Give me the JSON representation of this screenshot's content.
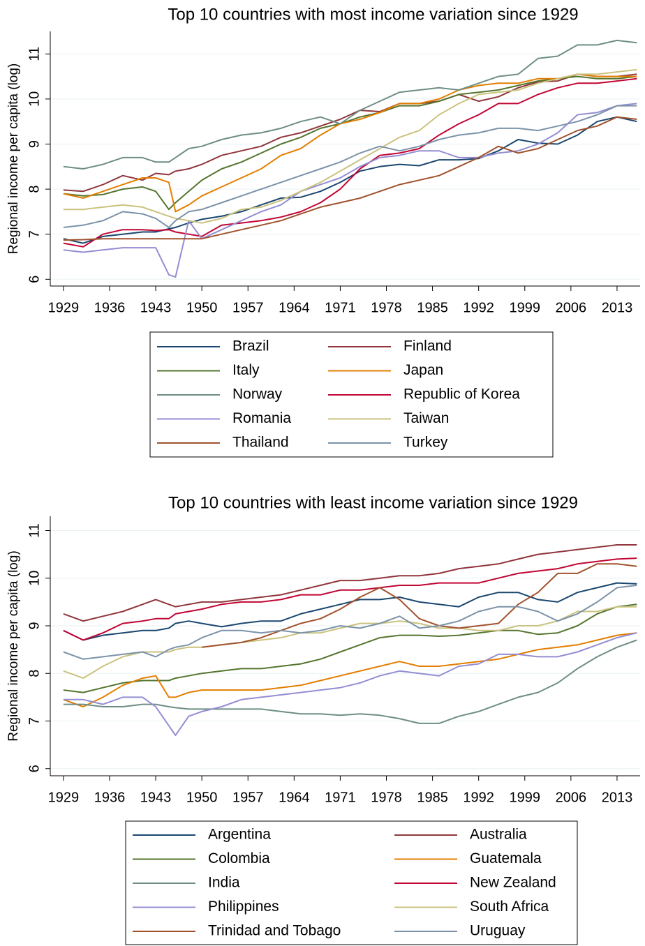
{
  "chart_data": [
    {
      "type": "line",
      "title": "Top 10 countries with most income variation since 1929",
      "ylabel": "Regional income per capita (log)",
      "grid": true,
      "legend": "bottom",
      "xlim": [
        1927,
        2016.5
      ],
      "xticks": [
        1929,
        1936,
        1943,
        1950,
        1957,
        1964,
        1971,
        1978,
        1985,
        1992,
        1999,
        2006,
        2013
      ],
      "ylim": [
        5.85,
        11.5
      ],
      "yticks": [
        6,
        7,
        8,
        9,
        10,
        11
      ],
      "x": [
        1929,
        1932,
        1935,
        1938,
        1941,
        1943,
        1945,
        1946,
        1948,
        1950,
        1953,
        1956,
        1959,
        1962,
        1965,
        1968,
        1971,
        1974,
        1977,
        1980,
        1983,
        1986,
        1989,
        1992,
        1995,
        1998,
        2001,
        2004,
        2007,
        2010,
        2013,
        2016
      ],
      "series": [
        {
          "name": "Brazil",
          "color": "#1a476f",
          "values": [
            6.9,
            6.8,
            6.95,
            7.0,
            7.05,
            7.05,
            7.12,
            7.15,
            7.25,
            7.33,
            7.4,
            7.5,
            7.65,
            7.8,
            7.82,
            7.95,
            8.15,
            8.4,
            8.5,
            8.55,
            8.52,
            8.65,
            8.65,
            8.68,
            8.85,
            9.1,
            9.02,
            9.0,
            9.2,
            9.5,
            9.6,
            9.5
          ]
        },
        {
          "name": "Finland",
          "color": "#90353b",
          "values": [
            7.98,
            7.95,
            8.1,
            8.3,
            8.2,
            8.35,
            8.32,
            8.4,
            8.45,
            8.55,
            8.75,
            8.85,
            8.95,
            9.15,
            9.25,
            9.4,
            9.55,
            9.75,
            9.72,
            9.9,
            9.9,
            9.95,
            10.1,
            9.95,
            10.05,
            10.25,
            10.38,
            10.4,
            10.55,
            10.5,
            10.5,
            10.55
          ]
        },
        {
          "name": "Italy",
          "color": "#55752f",
          "values": [
            7.9,
            7.85,
            7.88,
            8.0,
            8.05,
            7.95,
            7.55,
            7.7,
            7.95,
            8.2,
            8.45,
            8.6,
            8.8,
            9.0,
            9.15,
            9.35,
            9.45,
            9.6,
            9.7,
            9.85,
            9.85,
            9.95,
            10.1,
            10.15,
            10.2,
            10.3,
            10.4,
            10.45,
            10.5,
            10.45,
            10.45,
            10.5
          ]
        },
        {
          "name": "Japan",
          "color": "#e37e00",
          "values": [
            7.9,
            7.8,
            7.95,
            8.1,
            8.25,
            8.25,
            8.15,
            7.5,
            7.65,
            7.85,
            8.05,
            8.25,
            8.45,
            8.75,
            8.9,
            9.2,
            9.45,
            9.55,
            9.7,
            9.9,
            9.9,
            10.0,
            10.2,
            10.3,
            10.35,
            10.35,
            10.45,
            10.45,
            10.55,
            10.5,
            10.5,
            10.5
          ]
        },
        {
          "name": "Norway",
          "color": "#6e8e84",
          "values": [
            8.5,
            8.45,
            8.55,
            8.7,
            8.7,
            8.6,
            8.6,
            8.7,
            8.9,
            8.95,
            9.1,
            9.2,
            9.25,
            9.35,
            9.5,
            9.6,
            9.45,
            9.75,
            9.95,
            10.15,
            10.2,
            10.25,
            10.2,
            10.35,
            10.5,
            10.55,
            10.9,
            10.95,
            11.2,
            11.2,
            11.3,
            11.25
          ]
        },
        {
          "name": "Republic of Korea",
          "color": "#c10534",
          "values": [
            6.8,
            6.72,
            7.0,
            7.1,
            7.1,
            7.08,
            7.1,
            7.05,
            7.0,
            6.95,
            7.2,
            7.25,
            7.3,
            7.38,
            7.5,
            7.7,
            8.0,
            8.45,
            8.75,
            8.8,
            8.9,
            9.2,
            9.45,
            9.65,
            9.9,
            9.9,
            10.1,
            10.25,
            10.35,
            10.35,
            10.4,
            10.45
          ]
        },
        {
          "name": "Romania",
          "color": "#938dd2",
          "values": [
            6.65,
            6.6,
            6.65,
            6.7,
            6.7,
            6.7,
            6.1,
            6.05,
            7.3,
            6.9,
            7.1,
            7.3,
            7.5,
            7.65,
            7.95,
            8.1,
            8.25,
            8.5,
            8.7,
            8.75,
            8.85,
            8.85,
            8.7,
            8.7,
            8.8,
            8.85,
            9.0,
            9.25,
            9.65,
            9.7,
            9.85,
            9.9
          ]
        },
        {
          "name": "Taiwan",
          "color": "#cac27e",
          "values": [
            7.55,
            7.55,
            7.6,
            7.65,
            7.6,
            7.5,
            7.4,
            7.35,
            7.3,
            7.25,
            7.35,
            7.55,
            7.6,
            7.75,
            7.95,
            8.15,
            8.4,
            8.65,
            8.9,
            9.15,
            9.3,
            9.65,
            9.9,
            10.1,
            10.15,
            10.2,
            10.35,
            10.45,
            10.55,
            10.55,
            10.6,
            10.65
          ]
        },
        {
          "name": "Thailand",
          "color": "#a0522d",
          "values": [
            6.87,
            6.88,
            6.9,
            6.9,
            6.9,
            6.9,
            6.9,
            6.9,
            6.9,
            6.9,
            7.0,
            7.1,
            7.2,
            7.3,
            7.45,
            7.6,
            7.7,
            7.8,
            7.95,
            8.1,
            8.2,
            8.3,
            8.5,
            8.7,
            8.95,
            8.8,
            8.9,
            9.1,
            9.3,
            9.4,
            9.6,
            9.55
          ]
        },
        {
          "name": "Turkey",
          "color": "#7b92a8",
          "values": [
            7.15,
            7.2,
            7.3,
            7.5,
            7.45,
            7.35,
            7.15,
            7.3,
            7.5,
            7.55,
            7.7,
            7.85,
            8.0,
            8.15,
            8.3,
            8.45,
            8.6,
            8.8,
            8.95,
            8.85,
            8.95,
            9.1,
            9.2,
            9.25,
            9.35,
            9.35,
            9.3,
            9.4,
            9.5,
            9.65,
            9.85,
            9.85
          ]
        }
      ]
    },
    {
      "type": "line",
      "title": "Top 10 countries with least income variation since 1929",
      "ylabel": "Regional income per capita (log)",
      "grid": true,
      "legend": "bottom",
      "xlim": [
        1927,
        2016.5
      ],
      "xticks": [
        1929,
        1936,
        1943,
        1950,
        1957,
        1964,
        1971,
        1978,
        1985,
        1992,
        1999,
        2006,
        2013
      ],
      "ylim": [
        5.85,
        11.3
      ],
      "yticks": [
        6,
        7,
        8,
        9,
        10,
        11
      ],
      "x": [
        1929,
        1932,
        1935,
        1938,
        1941,
        1943,
        1945,
        1946,
        1948,
        1950,
        1953,
        1956,
        1959,
        1962,
        1965,
        1968,
        1971,
        1974,
        1977,
        1980,
        1983,
        1986,
        1989,
        1992,
        1995,
        1998,
        2001,
        2004,
        2007,
        2010,
        2013,
        2016
      ],
      "series": [
        {
          "name": "Argentina",
          "color": "#1a476f",
          "values": [
            8.9,
            8.7,
            8.8,
            8.85,
            8.9,
            8.9,
            8.95,
            9.05,
            9.1,
            9.05,
            8.98,
            9.05,
            9.1,
            9.1,
            9.25,
            9.35,
            9.45,
            9.55,
            9.55,
            9.6,
            9.5,
            9.45,
            9.4,
            9.6,
            9.7,
            9.7,
            9.55,
            9.5,
            9.7,
            9.8,
            9.9,
            9.88
          ]
        },
        {
          "name": "Australia",
          "color": "#90353b",
          "values": [
            9.25,
            9.1,
            9.2,
            9.3,
            9.45,
            9.55,
            9.45,
            9.4,
            9.45,
            9.5,
            9.5,
            9.55,
            9.6,
            9.65,
            9.75,
            9.85,
            9.95,
            9.95,
            10.0,
            10.05,
            10.05,
            10.1,
            10.2,
            10.25,
            10.3,
            10.4,
            10.5,
            10.55,
            10.6,
            10.65,
            10.7,
            10.7
          ]
        },
        {
          "name": "Colombia",
          "color": "#55752f",
          "values": [
            7.65,
            7.6,
            7.7,
            7.8,
            7.85,
            7.85,
            7.85,
            7.9,
            7.95,
            8.0,
            8.05,
            8.1,
            8.1,
            8.15,
            8.2,
            8.3,
            8.45,
            8.6,
            8.75,
            8.8,
            8.8,
            8.78,
            8.8,
            8.85,
            8.9,
            8.9,
            8.82,
            8.85,
            9.0,
            9.25,
            9.4,
            9.45
          ]
        },
        {
          "name": "Guatemala",
          "color": "#e37e00",
          "values": [
            7.45,
            7.3,
            7.5,
            7.75,
            7.9,
            7.95,
            7.5,
            7.5,
            7.6,
            7.65,
            7.65,
            7.65,
            7.65,
            7.7,
            7.75,
            7.85,
            7.95,
            8.05,
            8.15,
            8.25,
            8.15,
            8.15,
            8.2,
            8.25,
            8.3,
            8.4,
            8.5,
            8.55,
            8.6,
            8.7,
            8.8,
            8.85
          ]
        },
        {
          "name": "India",
          "color": "#6e8e84",
          "values": [
            7.35,
            7.35,
            7.3,
            7.3,
            7.35,
            7.35,
            7.3,
            7.28,
            7.25,
            7.25,
            7.25,
            7.25,
            7.25,
            7.2,
            7.15,
            7.15,
            7.12,
            7.15,
            7.12,
            7.05,
            6.95,
            6.95,
            7.1,
            7.2,
            7.35,
            7.5,
            7.6,
            7.8,
            8.1,
            8.35,
            8.55,
            8.7
          ]
        },
        {
          "name": "New Zealand",
          "color": "#c10534",
          "values": [
            8.9,
            8.7,
            8.85,
            9.05,
            9.1,
            9.15,
            9.15,
            9.25,
            9.3,
            9.35,
            9.45,
            9.5,
            9.5,
            9.55,
            9.65,
            9.65,
            9.75,
            9.75,
            9.8,
            9.85,
            9.85,
            9.9,
            9.9,
            9.9,
            10.0,
            10.1,
            10.15,
            10.2,
            10.3,
            10.35,
            10.4,
            10.42
          ]
        },
        {
          "name": "Philippines",
          "color": "#938dd2",
          "values": [
            7.45,
            7.45,
            7.35,
            7.5,
            7.5,
            7.3,
            6.9,
            6.7,
            7.1,
            7.2,
            7.3,
            7.45,
            7.5,
            7.55,
            7.6,
            7.65,
            7.7,
            7.8,
            7.95,
            8.05,
            8.0,
            7.95,
            8.15,
            8.2,
            8.4,
            8.4,
            8.35,
            8.35,
            8.45,
            8.6,
            8.75,
            8.85
          ]
        },
        {
          "name": "South Africa",
          "color": "#cac27e",
          "values": [
            8.05,
            7.9,
            8.15,
            8.35,
            8.45,
            8.45,
            8.45,
            8.5,
            8.55,
            8.55,
            8.6,
            8.65,
            8.7,
            8.75,
            8.85,
            8.85,
            8.95,
            9.05,
            9.05,
            9.1,
            9.05,
            8.95,
            8.95,
            8.9,
            8.9,
            9.0,
            9.0,
            9.1,
            9.3,
            9.3,
            9.4,
            9.4
          ]
        },
        {
          "name": "Trinidad and Tobago",
          "color": "#a0522d",
          "values": [
            null,
            null,
            null,
            null,
            null,
            null,
            null,
            null,
            null,
            8.55,
            8.6,
            8.65,
            8.75,
            8.9,
            9.05,
            9.15,
            9.35,
            9.6,
            9.8,
            9.55,
            9.15,
            9.0,
            8.95,
            9.0,
            9.05,
            9.45,
            9.7,
            10.1,
            10.1,
            10.3,
            10.3,
            10.25
          ]
        },
        {
          "name": "Uruguay",
          "color": "#7b92a8",
          "values": [
            8.45,
            8.3,
            8.35,
            8.4,
            8.45,
            8.35,
            8.5,
            8.55,
            8.6,
            8.75,
            8.9,
            8.9,
            8.85,
            8.9,
            8.85,
            8.9,
            9.0,
            8.95,
            9.05,
            9.2,
            8.95,
            9.0,
            9.1,
            9.3,
            9.4,
            9.4,
            9.3,
            9.1,
            9.25,
            9.5,
            9.8,
            9.85
          ]
        }
      ]
    }
  ]
}
